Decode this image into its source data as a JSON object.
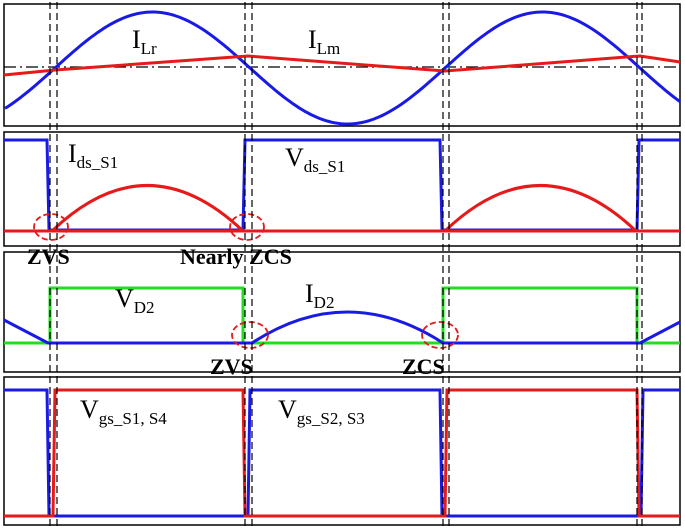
{
  "labels": [
    {
      "main": "I",
      "sub": "Lr"
    },
    {
      "main": "I",
      "sub": "Lm"
    },
    {
      "main": "I",
      "sub": "ds_S1"
    },
    {
      "main": "V",
      "sub": "ds_S1"
    },
    {
      "main": "ZVS"
    },
    {
      "main": "Nearly ZCS"
    },
    {
      "main": "V",
      "sub": "D2"
    },
    {
      "main": "I",
      "sub": "D2"
    },
    {
      "main": "ZVS"
    },
    {
      "main": "ZCS"
    },
    {
      "main": "V",
      "sub": "gs_S1, S4"
    },
    {
      "main": "V",
      "sub": "gs_S2, S3"
    }
  ]
}
